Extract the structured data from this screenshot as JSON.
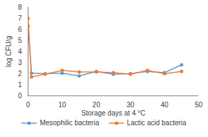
{
  "chart_data": {
    "type": "line",
    "x_label": "Storage days at 4 °C",
    "y_label": "log CFU/g",
    "x": [
      0,
      1,
      5,
      10,
      15,
      20,
      25,
      30,
      35,
      40,
      45
    ],
    "series": [
      {
        "name": "Mesophilic bacteria",
        "color": "#5b9bd5",
        "marker": "circle",
        "line_style": "solid",
        "values": [
          6.3,
          2.05,
          2.0,
          2.05,
          1.8,
          2.2,
          1.95,
          2.0,
          2.2,
          2.1,
          2.8
        ]
      },
      {
        "name": "Lactic acid bacteria",
        "color": "#ed7d31",
        "marker": "circle",
        "line_style": "solid",
        "values": [
          7.0,
          1.7,
          1.95,
          2.3,
          2.15,
          2.15,
          2.1,
          1.95,
          2.3,
          2.0,
          2.2
        ]
      }
    ],
    "xlim": [
      0,
      50
    ],
    "xticks": [
      0,
      10,
      20,
      30,
      40,
      50
    ],
    "ylim": [
      0,
      8
    ],
    "yticks": [
      0,
      1,
      2,
      3,
      4,
      5,
      6,
      7,
      8
    ],
    "grid": false,
    "legend": "bottom"
  }
}
